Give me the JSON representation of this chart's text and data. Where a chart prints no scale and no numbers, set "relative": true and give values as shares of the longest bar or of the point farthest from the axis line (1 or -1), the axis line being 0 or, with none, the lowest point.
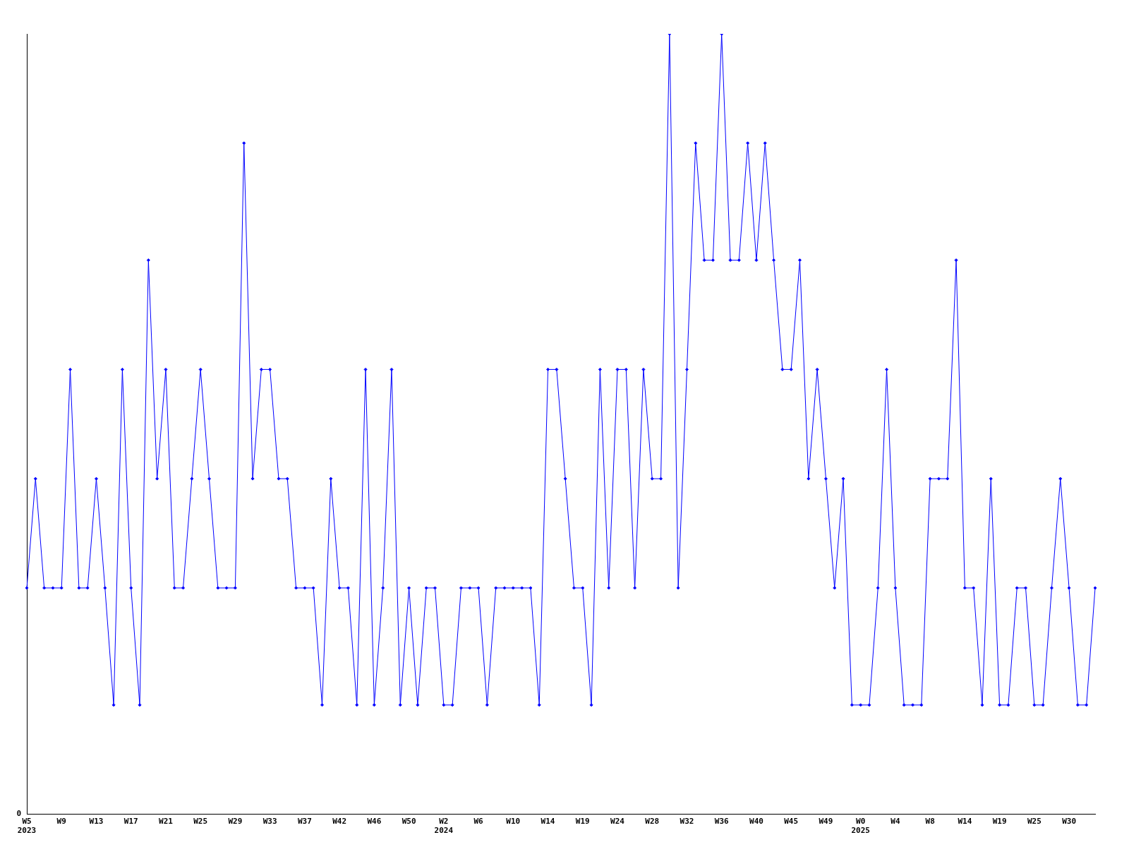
{
  "chart_data": {
    "type": "line",
    "relative": true,
    "marker": "diamond",
    "line_style": "solid",
    "grid": false,
    "legend": false,
    "categories": [
      "W5\n2023",
      null,
      null,
      null,
      "W9",
      null,
      null,
      null,
      "W13",
      null,
      null,
      null,
      "W17",
      null,
      null,
      null,
      "W21",
      null,
      null,
      null,
      "W25",
      null,
      null,
      null,
      "W29",
      null,
      null,
      null,
      "W33",
      null,
      null,
      null,
      "W37",
      null,
      null,
      null,
      "W42",
      null,
      null,
      null,
      "W46",
      null,
      null,
      null,
      "W50",
      null,
      null,
      null,
      "W2\n2024",
      null,
      null,
      null,
      "W6",
      null,
      null,
      null,
      "W10",
      null,
      null,
      null,
      "W14",
      null,
      null,
      null,
      "W19",
      null,
      null,
      null,
      "W24",
      null,
      null,
      null,
      "W28",
      null,
      null,
      null,
      "W32",
      null,
      null,
      null,
      "W36",
      null,
      null,
      null,
      "W40",
      null,
      null,
      null,
      "W45",
      null,
      null,
      null,
      "W49",
      null,
      null,
      null,
      "W0\n2025",
      null,
      null,
      null,
      "W4",
      null,
      null,
      null,
      "W8",
      null,
      null,
      null,
      "W14",
      null,
      null,
      null,
      "W19",
      null,
      null,
      null,
      "W25",
      null,
      null,
      null,
      "W30",
      null,
      null,
      null
    ],
    "series": [
      {
        "color": "#0000ff",
        "values": [
          0.29,
          0.43,
          0.29,
          0.29,
          0.29,
          0.57,
          0.29,
          0.29,
          0.43,
          0.29,
          0.14,
          0.57,
          0.29,
          0.14,
          0.71,
          0.43,
          0.57,
          0.29,
          0.29,
          0.43,
          0.57,
          0.43,
          0.29,
          0.29,
          0.29,
          0.86,
          0.43,
          0.57,
          0.57,
          0.43,
          0.43,
          0.29,
          0.29,
          0.29,
          0.14,
          0.43,
          0.29,
          0.29,
          0.14,
          0.57,
          0.14,
          0.29,
          0.57,
          0.14,
          0.29,
          0.14,
          0.29,
          0.29,
          0.14,
          0.14,
          0.29,
          0.29,
          0.29,
          0.14,
          0.29,
          0.29,
          0.29,
          0.29,
          0.29,
          0.14,
          0.57,
          0.57,
          0.43,
          0.29,
          0.29,
          0.14,
          0.57,
          0.29,
          0.57,
          0.57,
          0.29,
          0.57,
          0.43,
          0.43,
          1,
          0.29,
          0.57,
          0.86,
          0.71,
          0.71,
          1,
          0.71,
          0.71,
          0.86,
          0.71,
          0.86,
          0.71,
          0.57,
          0.57,
          0.71,
          0.43,
          0.57,
          0.43,
          0.29,
          0.43,
          0.14,
          0.14,
          0.14,
          0.29,
          0.57,
          0.29,
          0.14,
          0.14,
          0.14,
          0.43,
          0.43,
          0.43,
          0.71,
          0.29,
          0.29,
          0.14,
          0.43,
          0.14,
          0.14,
          0.29,
          0.29,
          0.14,
          0.14,
          0.29,
          0.43,
          0.29,
          0.14,
          0.14,
          0.29
        ]
      }
    ],
    "annotations": [
      "0"
    ]
  }
}
